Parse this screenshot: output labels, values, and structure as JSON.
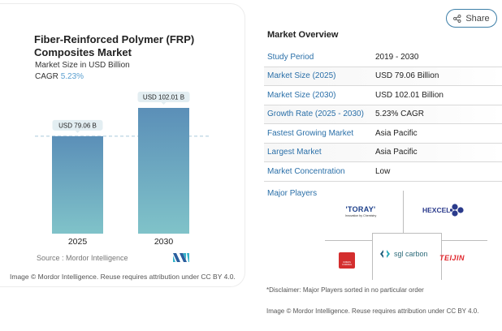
{
  "card": {
    "title": "Fiber-Reinforced Polymer (FRP) Composites Market",
    "subtitle": "Market Size in USD Billion",
    "cagr_label": "CAGR",
    "cagr_value": "5.23%",
    "source": "Source :  Mordor Intelligence",
    "copyright": "Image © Mordor Intelligence. Reuse requires attribution under CC BY 4.0."
  },
  "chart_data": {
    "type": "bar",
    "title": "Fiber-Reinforced Polymer (FRP) Composites Market",
    "ylabel": "Market Size in USD Billion",
    "xlabel": "",
    "categories": [
      "2025",
      "2030"
    ],
    "values": [
      79.06,
      102.01
    ],
    "data_labels": [
      "USD 79.06 B",
      "USD 102.01 B"
    ],
    "ylim": [
      0,
      110
    ],
    "reference_line": 79.06,
    "grid": false,
    "colors": {
      "bar_top": "#5b8fb8",
      "bar_bottom": "#80c3c9",
      "label_bg": "#e3eef2",
      "dash": "#a9c9da"
    }
  },
  "share": {
    "label": "Share",
    "icon": "share-icon"
  },
  "overview": {
    "title": "Market Overview",
    "rows": [
      {
        "key": "Study Period",
        "value": "2019 - 2030"
      },
      {
        "key": "Market Size (2025)",
        "value": "USD 79.06 Billion"
      },
      {
        "key": "Market Size (2030)",
        "value": "USD 102.01 Billion"
      },
      {
        "key": "Growth Rate (2025 - 2030)",
        "value": "5.23% CAGR"
      },
      {
        "key": "Fastest Growing Market",
        "value": "Asia Pacific"
      },
      {
        "key": "Largest Market",
        "value": "Asia Pacific"
      },
      {
        "key": "Market Concentration",
        "value": "Low"
      }
    ]
  },
  "major_players": {
    "title": "Major Players",
    "players": {
      "toray": {
        "name": "'TORAY'",
        "tagline": "Innovation by Chemistry"
      },
      "hexcel": {
        "name": "HEXCEL"
      },
      "owens": {
        "name": "OWENS CORNING"
      },
      "sgl": {
        "name": "sgl carbon"
      },
      "teijin": {
        "name": "TEIJIN"
      }
    }
  },
  "disclaimer": "*Disclaimer: Major Players sorted in no particular order",
  "copyright_right": "Image © Mordor Intelligence. Reuse requires attribution under CC BY 4.0.",
  "colors": {
    "accent": "#2a6fa8",
    "share_border": "#3d7fa8",
    "cagr": "#5a9fd0"
  }
}
